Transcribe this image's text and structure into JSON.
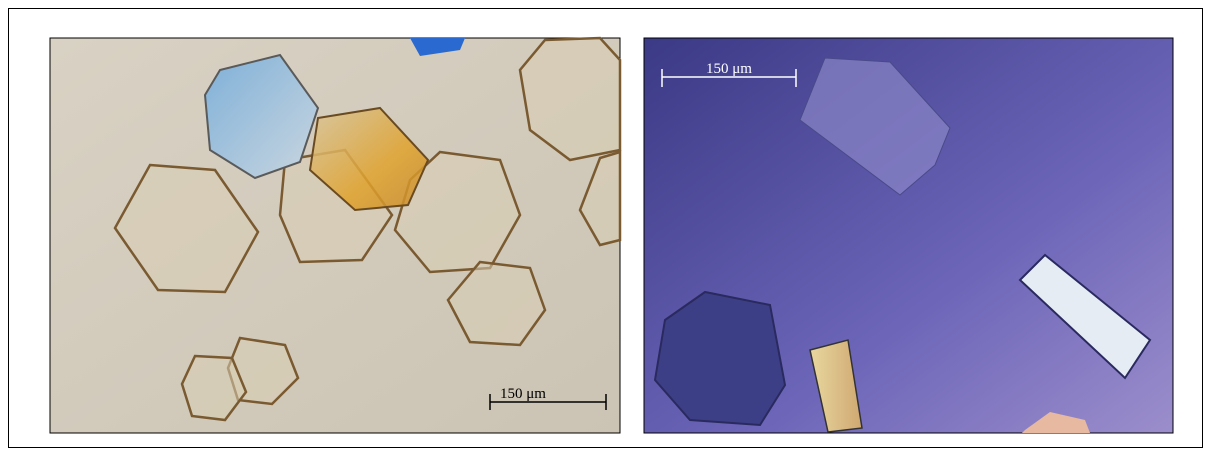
{
  "panels": [
    {
      "scale_bar": "150 μm"
    },
    {
      "scale_bar": "150 μm"
    }
  ]
}
